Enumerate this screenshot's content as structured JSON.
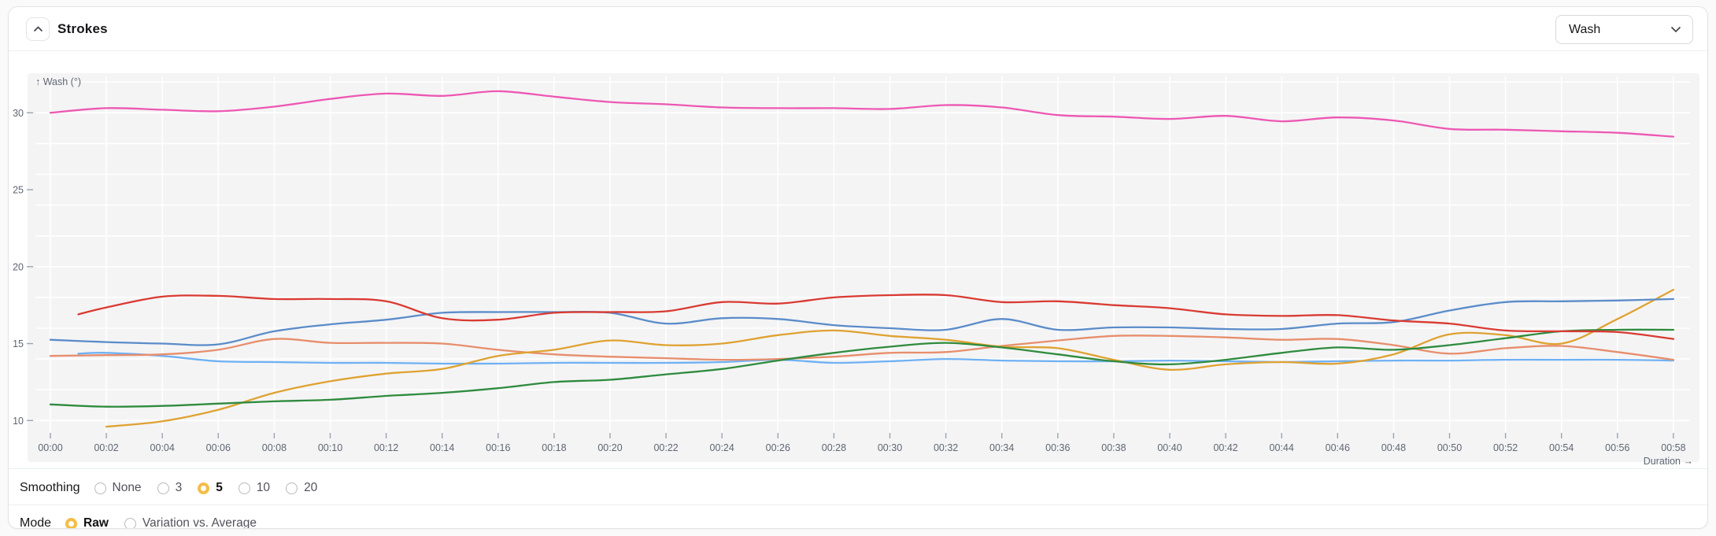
{
  "header": {
    "title": "Strokes",
    "collapse_icon": "chevron-up",
    "metric_dropdown": {
      "value": "Wash",
      "icon": "chevron-down"
    }
  },
  "chart": {
    "y_axis_title": "↑ Wash (°)",
    "x_axis_title": "Duration →",
    "y_tick_labels": [
      30,
      25,
      20,
      15,
      10
    ],
    "x_tick_labels": [
      "00:00",
      "00:02",
      "00:04",
      "00:06",
      "00:08",
      "00:10",
      "00:12",
      "00:14",
      "00:16",
      "00:18",
      "00:20",
      "00:22",
      "00:24",
      "00:26",
      "00:28",
      "00:30",
      "00:32",
      "00:34",
      "00:36",
      "00:38",
      "00:40",
      "00:42",
      "00:44",
      "00:46",
      "00:48",
      "00:50",
      "00:52",
      "00:54",
      "00:56",
      "00:58"
    ],
    "grid_y_values": [
      10,
      12,
      14,
      16,
      18,
      20,
      22,
      24,
      26,
      28,
      30,
      32
    ],
    "plot_bg": "#f4f4f5",
    "grid_color": "#ffffff",
    "axis_text_color": "#5f6672",
    "tick_color": "#9ca3af"
  },
  "chart_data": {
    "type": "line",
    "title": "Strokes",
    "xlabel": "Duration (mm:ss)",
    "ylabel": "Wash (°)",
    "ylim": [
      9,
      32.5
    ],
    "xlim_minutes": [
      0,
      58
    ],
    "x_tick_step_minutes": 2,
    "grid": true,
    "legend": "none",
    "smoothing": "5",
    "mode": "Raw",
    "series": [
      {
        "name": "wash-magenta",
        "color": "#ed58b3",
        "points": [
          [
            0,
            30.0
          ],
          [
            2,
            30.3
          ],
          [
            4,
            30.2
          ],
          [
            6,
            30.1
          ],
          [
            8,
            30.4
          ],
          [
            10,
            30.9
          ],
          [
            12,
            31.25
          ],
          [
            14,
            31.1
          ],
          [
            16,
            31.4
          ],
          [
            18,
            31.05
          ],
          [
            20,
            30.7
          ],
          [
            22,
            30.55
          ],
          [
            24,
            30.35
          ],
          [
            26,
            30.3
          ],
          [
            28,
            30.3
          ],
          [
            30,
            30.25
          ],
          [
            32,
            30.5
          ],
          [
            34,
            30.35
          ],
          [
            36,
            29.85
          ],
          [
            38,
            29.75
          ],
          [
            40,
            29.6
          ],
          [
            42,
            29.8
          ],
          [
            44,
            29.45
          ],
          [
            46,
            29.7
          ],
          [
            48,
            29.5
          ],
          [
            50,
            28.95
          ],
          [
            52,
            28.9
          ],
          [
            54,
            28.8
          ],
          [
            56,
            28.7
          ],
          [
            58,
            28.45
          ]
        ]
      },
      {
        "name": "wash-sky",
        "color": "#6fb1f4",
        "points": [
          [
            1,
            14.35
          ],
          [
            2,
            14.4
          ],
          [
            4,
            14.2
          ],
          [
            6,
            13.85
          ],
          [
            8,
            13.8
          ],
          [
            10,
            13.75
          ],
          [
            12,
            13.75
          ],
          [
            14,
            13.7
          ],
          [
            16,
            13.7
          ],
          [
            18,
            13.75
          ],
          [
            20,
            13.75
          ],
          [
            22,
            13.75
          ],
          [
            24,
            13.8
          ],
          [
            26,
            13.95
          ],
          [
            28,
            13.75
          ],
          [
            30,
            13.85
          ],
          [
            32,
            14.0
          ],
          [
            34,
            13.9
          ],
          [
            36,
            13.85
          ],
          [
            38,
            13.85
          ],
          [
            40,
            13.9
          ],
          [
            42,
            13.85
          ],
          [
            44,
            13.8
          ],
          [
            46,
            13.85
          ],
          [
            48,
            13.9
          ],
          [
            50,
            13.9
          ],
          [
            52,
            13.95
          ],
          [
            54,
            13.95
          ],
          [
            56,
            13.95
          ],
          [
            58,
            13.9
          ]
        ]
      },
      {
        "name": "wash-coral",
        "color": "#e78e6c",
        "points": [
          [
            0,
            14.2
          ],
          [
            2,
            14.25
          ],
          [
            4,
            14.3
          ],
          [
            6,
            14.6
          ],
          [
            8,
            15.3
          ],
          [
            10,
            15.05
          ],
          [
            12,
            15.05
          ],
          [
            14,
            15.0
          ],
          [
            16,
            14.6
          ],
          [
            18,
            14.3
          ],
          [
            20,
            14.15
          ],
          [
            22,
            14.05
          ],
          [
            24,
            13.95
          ],
          [
            26,
            14.0
          ],
          [
            28,
            14.15
          ],
          [
            30,
            14.4
          ],
          [
            32,
            14.45
          ],
          [
            34,
            14.85
          ],
          [
            36,
            15.2
          ],
          [
            38,
            15.5
          ],
          [
            40,
            15.5
          ],
          [
            42,
            15.4
          ],
          [
            44,
            15.25
          ],
          [
            46,
            15.3
          ],
          [
            48,
            14.9
          ],
          [
            50,
            14.35
          ],
          [
            52,
            14.7
          ],
          [
            54,
            14.85
          ],
          [
            56,
            14.45
          ],
          [
            58,
            13.95
          ]
        ]
      },
      {
        "name": "wash-amber",
        "color": "#dfa231",
        "points": [
          [
            2,
            9.6
          ],
          [
            4,
            9.95
          ],
          [
            6,
            10.7
          ],
          [
            8,
            11.8
          ],
          [
            10,
            12.55
          ],
          [
            12,
            13.05
          ],
          [
            14,
            13.35
          ],
          [
            16,
            14.2
          ],
          [
            18,
            14.6
          ],
          [
            20,
            15.2
          ],
          [
            22,
            14.9
          ],
          [
            24,
            15.0
          ],
          [
            26,
            15.55
          ],
          [
            28,
            15.85
          ],
          [
            30,
            15.5
          ],
          [
            32,
            15.25
          ],
          [
            34,
            14.8
          ],
          [
            36,
            14.7
          ],
          [
            38,
            13.95
          ],
          [
            40,
            13.3
          ],
          [
            42,
            13.65
          ],
          [
            44,
            13.8
          ],
          [
            46,
            13.7
          ],
          [
            48,
            14.3
          ],
          [
            50,
            15.6
          ],
          [
            52,
            15.55
          ],
          [
            54,
            15.0
          ],
          [
            56,
            16.6
          ],
          [
            58,
            18.5
          ]
        ]
      },
      {
        "name": "wash-green",
        "color": "#2f8b3d",
        "points": [
          [
            0,
            11.05
          ],
          [
            2,
            10.9
          ],
          [
            4,
            10.95
          ],
          [
            6,
            11.1
          ],
          [
            8,
            11.25
          ],
          [
            10,
            11.35
          ],
          [
            12,
            11.6
          ],
          [
            14,
            11.8
          ],
          [
            16,
            12.1
          ],
          [
            18,
            12.5
          ],
          [
            20,
            12.65
          ],
          [
            22,
            13.0
          ],
          [
            24,
            13.35
          ],
          [
            26,
            13.9
          ],
          [
            28,
            14.4
          ],
          [
            30,
            14.8
          ],
          [
            32,
            15.05
          ],
          [
            34,
            14.75
          ],
          [
            36,
            14.3
          ],
          [
            38,
            13.85
          ],
          [
            40,
            13.65
          ],
          [
            42,
            13.95
          ],
          [
            44,
            14.4
          ],
          [
            46,
            14.75
          ],
          [
            48,
            14.6
          ],
          [
            50,
            14.9
          ],
          [
            52,
            15.35
          ],
          [
            54,
            15.8
          ],
          [
            56,
            15.9
          ],
          [
            58,
            15.9
          ]
        ]
      },
      {
        "name": "wash-blue",
        "color": "#5b8cc9",
        "points": [
          [
            0,
            15.25
          ],
          [
            2,
            15.1
          ],
          [
            4,
            15.0
          ],
          [
            6,
            14.95
          ],
          [
            8,
            15.8
          ],
          [
            10,
            16.25
          ],
          [
            12,
            16.55
          ],
          [
            14,
            17.0
          ],
          [
            16,
            17.05
          ],
          [
            18,
            17.05
          ],
          [
            20,
            17.0
          ],
          [
            22,
            16.3
          ],
          [
            24,
            16.65
          ],
          [
            26,
            16.6
          ],
          [
            28,
            16.2
          ],
          [
            30,
            16.0
          ],
          [
            32,
            15.9
          ],
          [
            34,
            16.6
          ],
          [
            36,
            15.9
          ],
          [
            38,
            16.05
          ],
          [
            40,
            16.05
          ],
          [
            42,
            15.95
          ],
          [
            44,
            15.95
          ],
          [
            46,
            16.3
          ],
          [
            48,
            16.4
          ],
          [
            50,
            17.15
          ],
          [
            52,
            17.7
          ],
          [
            54,
            17.75
          ],
          [
            56,
            17.8
          ],
          [
            58,
            17.9
          ]
        ]
      },
      {
        "name": "wash-red",
        "color": "#d93b32",
        "points": [
          [
            1,
            16.9
          ],
          [
            2,
            17.35
          ],
          [
            4,
            18.05
          ],
          [
            6,
            18.1
          ],
          [
            8,
            17.9
          ],
          [
            10,
            17.9
          ],
          [
            12,
            17.75
          ],
          [
            14,
            16.65
          ],
          [
            16,
            16.55
          ],
          [
            18,
            17.0
          ],
          [
            20,
            17.05
          ],
          [
            22,
            17.1
          ],
          [
            24,
            17.7
          ],
          [
            26,
            17.6
          ],
          [
            28,
            18.0
          ],
          [
            30,
            18.15
          ],
          [
            32,
            18.15
          ],
          [
            34,
            17.7
          ],
          [
            36,
            17.75
          ],
          [
            38,
            17.5
          ],
          [
            40,
            17.3
          ],
          [
            42,
            16.9
          ],
          [
            44,
            16.8
          ],
          [
            46,
            16.85
          ],
          [
            48,
            16.5
          ],
          [
            50,
            16.3
          ],
          [
            52,
            15.85
          ],
          [
            54,
            15.8
          ],
          [
            56,
            15.75
          ],
          [
            58,
            15.3
          ]
        ]
      }
    ]
  },
  "controls": {
    "smoothing": {
      "label": "Smoothing",
      "options": [
        {
          "label": "None",
          "selected": false
        },
        {
          "label": "3",
          "selected": false
        },
        {
          "label": "5",
          "selected": true
        },
        {
          "label": "10",
          "selected": false
        },
        {
          "label": "20",
          "selected": false
        }
      ]
    },
    "mode": {
      "label": "Mode",
      "options": [
        {
          "label": "Raw",
          "selected": true
        },
        {
          "label": "Variation vs. Average",
          "selected": false
        }
      ]
    }
  },
  "colors": {
    "accent_radio": "#f4bd47",
    "card_border": "#e4e4e7",
    "plot_background": "#f4f4f5"
  }
}
